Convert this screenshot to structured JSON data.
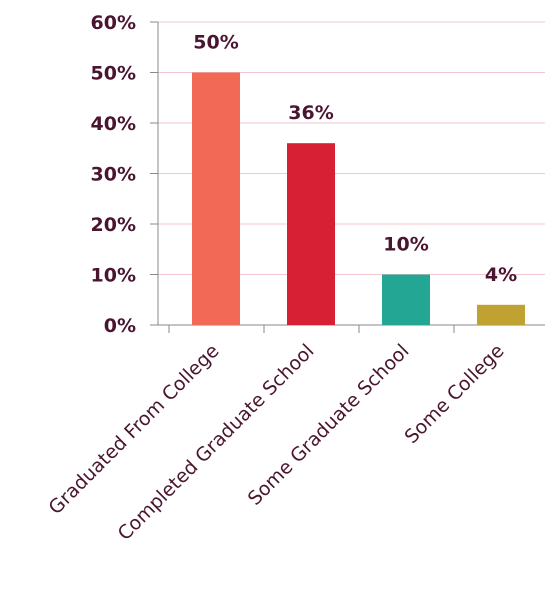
{
  "chart_data": {
    "type": "bar",
    "categories": [
      "Graduated From College",
      "Completed Graduate School",
      "Some Graduate School",
      "Some College"
    ],
    "values": [
      50,
      36,
      10,
      4
    ],
    "data_labels": [
      "50%",
      "36%",
      "10%",
      "4%"
    ],
    "colors": [
      "#f26a55",
      "#d72034",
      "#23a693",
      "#bfa232"
    ],
    "yticks": [
      0,
      10,
      20,
      30,
      40,
      50,
      60
    ],
    "ytick_labels": [
      "0%",
      "10%",
      "20%",
      "30%",
      "40%",
      "50%",
      "60%"
    ],
    "ylim": [
      0,
      60
    ],
    "grid": true,
    "gridline_color": "#f3c7cf",
    "axis_color": "#8a8a8a",
    "text_color": "#4a1530"
  }
}
